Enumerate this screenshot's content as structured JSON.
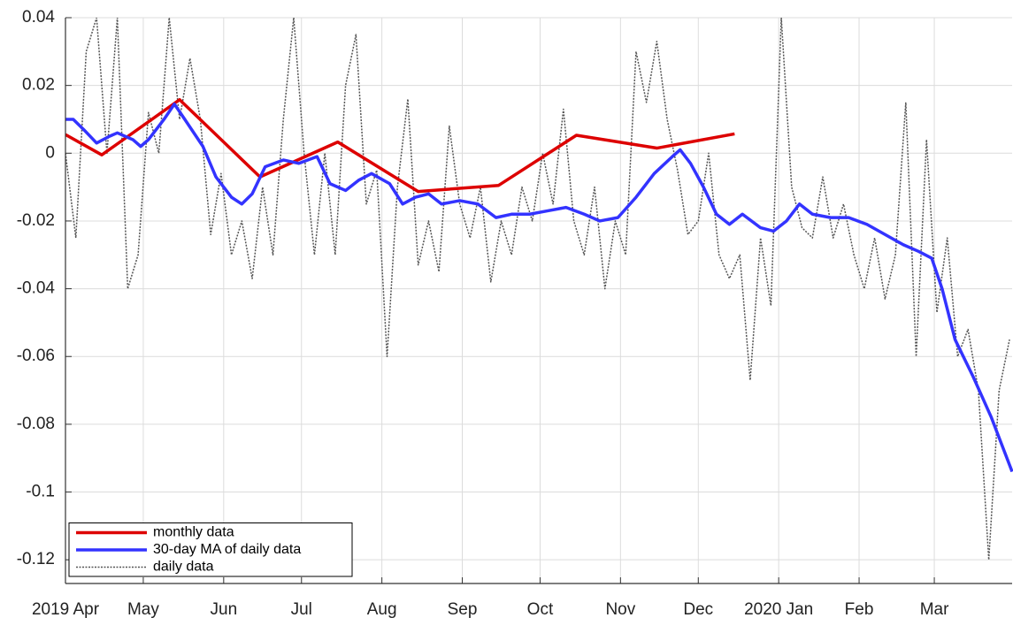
{
  "chart_data": {
    "type": "line",
    "xlim": [
      0,
      365
    ],
    "xticks": [
      {
        "value": 0,
        "label": "2019 Apr"
      },
      {
        "value": 30,
        "label": "May"
      },
      {
        "value": 61,
        "label": "Jun"
      },
      {
        "value": 91,
        "label": "Jul"
      },
      {
        "value": 122,
        "label": "Aug"
      },
      {
        "value": 153,
        "label": "Sep"
      },
      {
        "value": 183,
        "label": "Oct"
      },
      {
        "value": 214,
        "label": "Nov"
      },
      {
        "value": 244,
        "label": "Dec"
      },
      {
        "value": 275,
        "label": "2020 Jan"
      },
      {
        "value": 306,
        "label": "Feb"
      },
      {
        "value": 335,
        "label": "Mar"
      }
    ],
    "ylim": [
      -0.127,
      0.04
    ],
    "yticks": [
      0.04,
      0.02,
      0,
      -0.02,
      -0.04,
      -0.06,
      -0.08,
      -0.1,
      -0.12
    ],
    "grid": true,
    "legend": "lower left",
    "series": [
      {
        "name": "monthly data",
        "color": "#dd0000",
        "style": "solid",
        "width": 3.5,
        "x": [
          0,
          14,
          44,
          75,
          105,
          136,
          167,
          197,
          228,
          258
        ],
        "values": [
          0.0055,
          -0.0005,
          0.0158,
          -0.007,
          0.0033,
          -0.0113,
          -0.0095,
          0.0053,
          0.0015,
          0.0057
        ]
      },
      {
        "name": "30-day MA of daily data",
        "color": "#3333ff",
        "style": "solid",
        "width": 3.5,
        "x": [
          0,
          3,
          7,
          12,
          17,
          20,
          26,
          29,
          32,
          38,
          42,
          46,
          53,
          58,
          64,
          68,
          72,
          77,
          84,
          90,
          97,
          102,
          108,
          113,
          118,
          125,
          130,
          135,
          140,
          145,
          152,
          159,
          166,
          172,
          179,
          186,
          193,
          200,
          206,
          213,
          220,
          227,
          234,
          237,
          241,
          246,
          251,
          256,
          261,
          268,
          273,
          278,
          283,
          288,
          295,
          302,
          309,
          316,
          323,
          329,
          334,
          338,
          343,
          350,
          357,
          365
        ],
        "values": [
          0.01,
          0.01,
          0.007,
          0.003,
          0.005,
          0.006,
          0.004,
          0.002,
          0.004,
          0.01,
          0.0145,
          0.01,
          0.002,
          -0.007,
          -0.013,
          -0.015,
          -0.012,
          -0.004,
          -0.002,
          -0.003,
          -0.001,
          -0.009,
          -0.011,
          -0.008,
          -0.006,
          -0.009,
          -0.015,
          -0.013,
          -0.012,
          -0.015,
          -0.014,
          -0.015,
          -0.019,
          -0.018,
          -0.018,
          -0.017,
          -0.016,
          -0.018,
          -0.02,
          -0.019,
          -0.013,
          -0.006,
          -0.001,
          0.001,
          -0.003,
          -0.01,
          -0.018,
          -0.021,
          -0.018,
          -0.022,
          -0.023,
          -0.02,
          -0.015,
          -0.018,
          -0.019,
          -0.019,
          -0.021,
          -0.024,
          -0.027,
          -0.029,
          -0.031,
          -0.04,
          -0.055,
          -0.066,
          -0.078,
          -0.094
        ]
      },
      {
        "name": "daily data",
        "color": "#555555",
        "style": "dotted",
        "width": 1.5,
        "x": [
          0,
          4,
          8,
          12,
          16,
          20,
          24,
          28,
          32,
          36,
          40,
          44,
          48,
          52,
          56,
          60,
          64,
          68,
          72,
          76,
          80,
          84,
          88,
          92,
          96,
          100,
          104,
          108,
          112,
          116,
          120,
          124,
          128,
          132,
          136,
          140,
          144,
          148,
          152,
          156,
          160,
          164,
          168,
          172,
          176,
          180,
          184,
          188,
          192,
          196,
          200,
          204,
          208,
          212,
          216,
          220,
          224,
          228,
          232,
          236,
          240,
          244,
          248,
          252,
          256,
          260,
          264,
          268,
          272,
          276,
          280,
          284,
          288,
          292,
          296,
          300,
          304,
          308,
          312,
          316,
          320,
          324,
          328,
          332,
          336,
          340,
          344,
          348,
          352,
          356,
          360,
          364
        ],
        "values": [
          0.0,
          -0.025,
          0.03,
          0.04,
          0.0,
          0.04,
          -0.04,
          -0.03,
          0.012,
          0.0,
          0.04,
          0.01,
          0.028,
          0.01,
          -0.024,
          -0.006,
          -0.03,
          -0.02,
          -0.037,
          -0.01,
          -0.03,
          0.01,
          0.04,
          0.0,
          -0.03,
          0.0,
          -0.03,
          0.02,
          0.035,
          -0.015,
          -0.005,
          -0.06,
          -0.01,
          0.016,
          -0.033,
          -0.02,
          -0.035,
          0.008,
          -0.015,
          -0.025,
          -0.01,
          -0.038,
          -0.02,
          -0.03,
          -0.01,
          -0.02,
          0.0,
          -0.015,
          0.013,
          -0.02,
          -0.03,
          -0.01,
          -0.04,
          -0.02,
          -0.03,
          0.03,
          0.015,
          0.033,
          0.01,
          -0.005,
          -0.024,
          -0.02,
          0.0,
          -0.03,
          -0.037,
          -0.03,
          -0.067,
          -0.025,
          -0.045,
          0.04,
          -0.01,
          -0.022,
          -0.025,
          -0.007,
          -0.025,
          -0.015,
          -0.03,
          -0.04,
          -0.025,
          -0.043,
          -0.03,
          0.015,
          -0.06,
          0.004,
          -0.047,
          -0.025,
          -0.06,
          -0.052,
          -0.07,
          -0.12,
          -0.07,
          -0.055
        ]
      }
    ]
  }
}
